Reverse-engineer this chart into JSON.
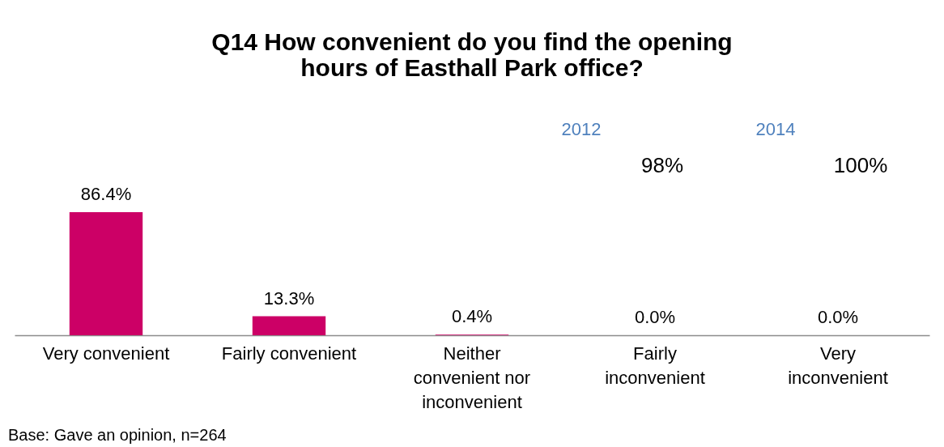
{
  "chart_data": {
    "type": "bar",
    "title": "Q14 How convenient do you find the opening hours of Easthall Park office?",
    "categories": [
      "Very convenient",
      "Fairly convenient",
      "Neither\nconvenient nor\ninconvenient",
      "Fairly\ninconvenient",
      "Very\ninconvenient"
    ],
    "values": [
      86.4,
      13.3,
      0.4,
      0.0,
      0.0
    ],
    "value_labels": [
      "86.4%",
      "13.3%",
      "0.4%",
      "0.0%",
      "0.0%"
    ],
    "color": "#cc0066",
    "annotations": [
      "Base: Gave an opinion, n=264",
      "2012",
      "98%",
      "2014",
      "100%"
    ],
    "grid": false
  }
}
